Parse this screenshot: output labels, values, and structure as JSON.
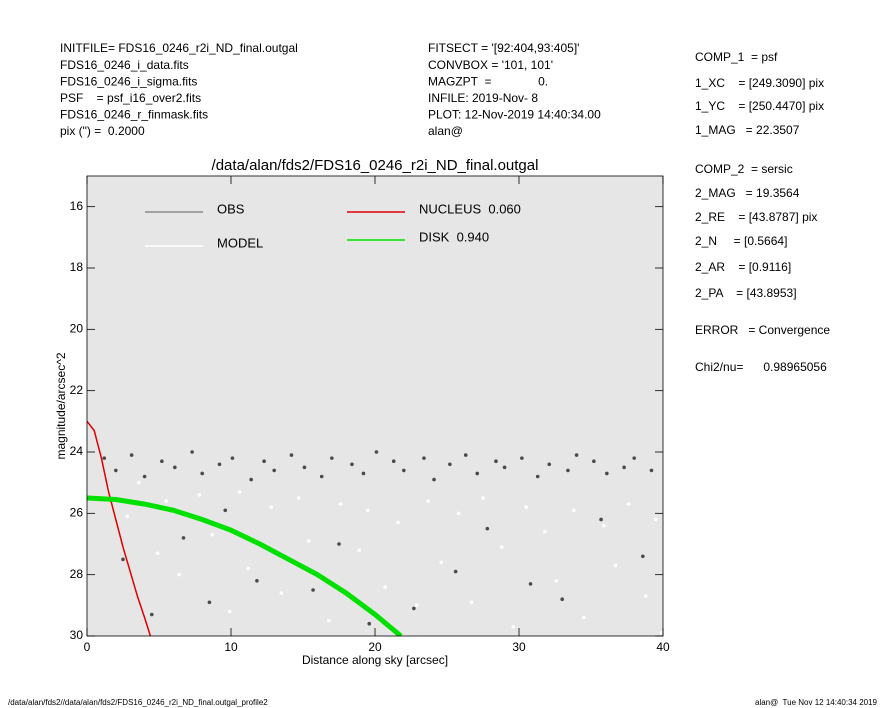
{
  "header": {
    "left": [
      "INITFILE= FDS16_0246_r2i_ND_final.outgal",
      "FDS16_0246_i_data.fits",
      "FDS16_0246_i_sigma.fits",
      "PSF    = psf_i16_over2.fits",
      "FDS16_0246_r_finmask.fits",
      "pix (\") =  0.2000"
    ],
    "middle": [
      "FITSECT = '[92:404,93:405]'",
      "CONVBOX = '101, 101'",
      "MAGZPT  =              0.",
      "INFILE: 2019-Nov- 8",
      "PLOT: 12-Nov-2019 14:40:34.00",
      "alan@"
    ]
  },
  "right_panel": [
    "COMP_1  = psf",
    "1_XC    = [249.3090] pix",
    "1_YC    = [250.4470] pix",
    "1_MAG   = 22.3507",
    "COMP_2  = sersic",
    "2_MAG   = 19.3564",
    "2_RE    = [43.8787] pix",
    "2_N     = [0.5664]",
    "2_AR    = [0.9116]",
    "2_PA    = [43.8953]",
    "ERROR   = Convergence",
    "Chi2/nu=      0.98965056"
  ],
  "footer": {
    "left": "/data/alan/fds2//data/alan/fds2/FDS16_0246_r2i_ND_final.outgal_profile2",
    "right": "alan@  Tue Nov 12 14:40:34 2019"
  },
  "chart_data": {
    "type": "scatter",
    "title": "/data/alan/fds2/FDS16_0246_r2i_ND_final.outgal",
    "x_label": "Distance along sky [arcsec]",
    "y_label": "magnitude/arcsec^2",
    "xlim": [
      0,
      40
    ],
    "ylim": [
      30,
      15
    ],
    "xticks": [
      0,
      10,
      20,
      30,
      40
    ],
    "yticks": [
      16,
      18,
      20,
      22,
      24,
      26,
      28,
      30
    ],
    "background": "#e6e6e6",
    "series": [
      {
        "name": "OBS",
        "color": "#4a4a4a",
        "type": "scatter",
        "x": [
          1.2,
          2.0,
          3.1,
          4.0,
          5.2,
          6.1,
          7.3,
          8.0,
          9.2,
          10.1,
          11.4,
          12.3,
          13.0,
          14.2,
          15.1,
          16.3,
          17.0,
          18.4,
          19.2,
          20.1,
          21.3,
          22.0,
          23.4,
          24.1,
          25.2,
          26.3,
          27.1,
          28.4,
          29.0,
          30.2,
          31.3,
          32.1,
          33.4,
          34.0,
          35.2,
          36.1,
          37.3,
          38.0,
          39.2,
          2.5,
          6.7,
          11.8,
          17.5,
          22.7,
          27.8,
          33.0,
          38.6,
          4.5,
          9.6,
          15.7,
          25.6,
          35.7,
          8.5,
          19.6,
          30.8
        ],
        "values": [
          24.2,
          24.6,
          24.1,
          24.8,
          24.3,
          24.5,
          24.0,
          24.7,
          24.4,
          24.2,
          24.9,
          24.3,
          24.6,
          24.1,
          24.5,
          24.8,
          24.2,
          24.4,
          24.7,
          24.0,
          24.3,
          24.6,
          24.2,
          24.9,
          24.4,
          24.1,
          24.7,
          24.3,
          24.5,
          24.2,
          24.8,
          24.4,
          24.6,
          24.1,
          24.3,
          24.7,
          24.5,
          24.2,
          24.6,
          27.5,
          26.8,
          28.2,
          27.0,
          29.1,
          26.5,
          28.8,
          27.4,
          29.3,
          25.9,
          28.5,
          27.9,
          26.2,
          28.9,
          29.6,
          28.3
        ]
      },
      {
        "name": "MODEL",
        "color": "#ffffff",
        "type": "scatter",
        "x": [
          1.5,
          2.8,
          3.6,
          4.9,
          5.5,
          6.4,
          7.8,
          8.7,
          9.9,
          10.6,
          11.2,
          12.8,
          13.5,
          14.7,
          15.4,
          16.8,
          17.6,
          18.9,
          19.5,
          20.7,
          21.6,
          22.9,
          23.7,
          24.6,
          25.8,
          26.7,
          27.5,
          28.8,
          29.6,
          30.5,
          31.8,
          32.6,
          33.8,
          34.5,
          35.9,
          36.7,
          37.6,
          38.8,
          39.5,
          39.9
        ],
        "values": [
          25.2,
          26.1,
          25.0,
          27.3,
          25.6,
          28.0,
          25.4,
          26.7,
          29.2,
          25.3,
          27.8,
          25.8,
          28.6,
          25.5,
          26.9,
          29.5,
          25.7,
          27.2,
          25.9,
          28.4,
          26.3,
          29.0,
          25.6,
          27.6,
          26.0,
          28.9,
          25.5,
          27.1,
          29.7,
          25.8,
          26.6,
          28.2,
          25.9,
          29.4,
          26.4,
          27.7,
          25.7,
          28.7,
          26.2,
          29.9
        ]
      },
      {
        "name": "NUCLEUS  0.060",
        "color": "#e00000",
        "type": "line",
        "x": [
          0,
          0.5,
          1,
          1.5,
          2,
          2.5,
          3,
          3.5,
          4,
          4.4
        ],
        "values": [
          23.0,
          23.3,
          24.2,
          25.3,
          26.2,
          27.1,
          27.9,
          28.7,
          29.4,
          30.0
        ]
      },
      {
        "name": "DISK  0.940",
        "color": "#00e000",
        "type": "line",
        "x": [
          0,
          2,
          4,
          6,
          8,
          10,
          12,
          14,
          16,
          18,
          20,
          21.8
        ],
        "values": [
          25.5,
          25.55,
          25.7,
          25.9,
          26.2,
          26.55,
          27.0,
          27.5,
          28.0,
          28.6,
          29.3,
          30.0
        ]
      }
    ]
  }
}
